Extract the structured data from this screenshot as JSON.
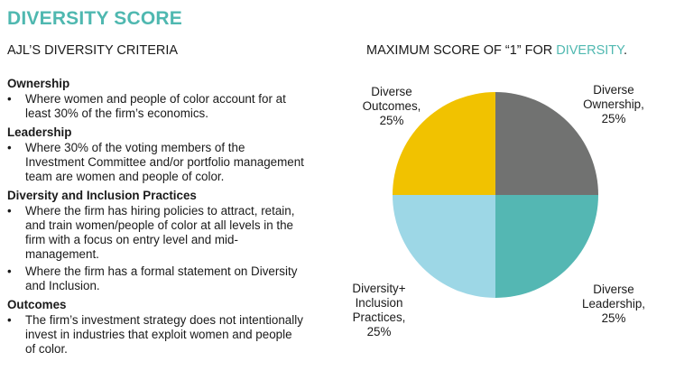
{
  "header": {
    "title": "DIVERSITY SCORE",
    "criteria_heading": "AJL’S DIVERSITY CRITERIA",
    "chart_heading_prefix": "MAXIMUM SCORE OF “1” FOR ",
    "chart_heading_accent": "DIVERSITY",
    "chart_heading_suffix": "."
  },
  "criteria": {
    "bullet": "•",
    "ownership": {
      "title": "Ownership",
      "items": [
        "Where women and people of color account for at least 30% of the firm’s economics."
      ]
    },
    "leadership": {
      "title": "Leadership",
      "items": [
        "Where 30% of the voting members of the Investment Committee and/or portfolio management team are women and people of color."
      ]
    },
    "practices": {
      "title": "Diversity and Inclusion Practices",
      "items": [
        "Where the firm has hiring policies to attract, retain, and train women/people of color at all levels in the firm with a focus on entry level and mid-management.",
        "Where the firm has a formal statement on Diversity and Inclusion."
      ]
    },
    "outcomes": {
      "title": "Outcomes",
      "items": [
        "The firm’s investment strategy does not intentionally invest in industries that exploit women and people of color."
      ]
    }
  },
  "colors": {
    "accent": "#4fb8b0",
    "ownership": "#717271",
    "leadership": "#54b7b3",
    "practices": "#9dd7e6",
    "outcomes": "#f1c200"
  },
  "chart_data": {
    "type": "pie",
    "slices": [
      {
        "name": "Diverse Ownership",
        "value": 25,
        "label_lines": [
          "Diverse",
          "Ownership,",
          "25%"
        ]
      },
      {
        "name": "Diverse Leadership",
        "value": 25,
        "label_lines": [
          "Diverse",
          "Leadership,",
          "25%"
        ]
      },
      {
        "name": "Diversity+ Inclusion Practices",
        "value": 25,
        "label_lines": [
          "Diversity+",
          "Inclusion",
          "Practices,",
          "25%"
        ]
      },
      {
        "name": "Diverse Outcomes",
        "value": 25,
        "label_lines": [
          "Diverse",
          "Outcomes,",
          "25%"
        ]
      }
    ]
  }
}
